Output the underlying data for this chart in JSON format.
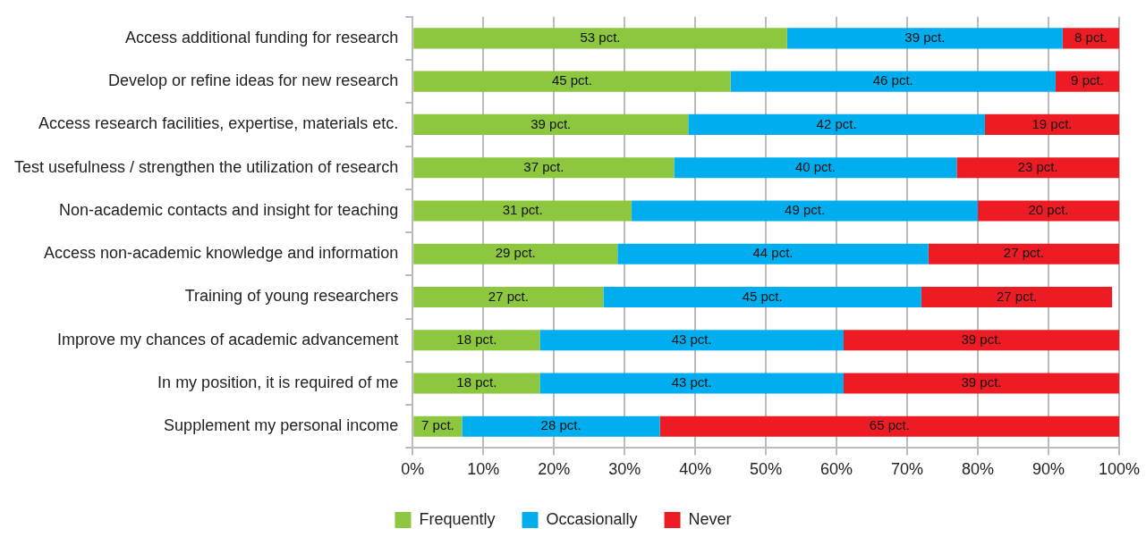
{
  "chart_data": {
    "type": "bar",
    "orientation": "horizontal",
    "stacked": true,
    "categories": [
      "Access additional funding for research",
      "Develop or refine ideas for new research",
      "Access research facilities, expertise, materials etc.",
      "Test usefulness / strengthen the utilization of research",
      "Non-academic contacts and insight for teaching",
      "Access non-academic knowledge and information",
      "Training of young researchers",
      "Improve my chances of academic advancement",
      "In my position, it is required of me",
      "Supplement my personal income"
    ],
    "series": [
      {
        "name": "Frequently",
        "color": "#8dc63f",
        "values": [
          53,
          45,
          39,
          37,
          31,
          29,
          27,
          18,
          18,
          7
        ],
        "value_labels": [
          "53 pct.",
          "45 pct.",
          "39 pct.",
          "37 pct.",
          "31 pct.",
          "29 pct.",
          "27 pct.",
          "18 pct.",
          "18 pct.",
          "7 pct."
        ]
      },
      {
        "name": "Occasionally",
        "color": "#00aeef",
        "values": [
          39,
          46,
          42,
          40,
          49,
          44,
          45,
          43,
          43,
          28
        ],
        "value_labels": [
          "39 pct.",
          "46 pct.",
          "42 pct.",
          "40 pct.",
          "49 pct.",
          "44 pct.",
          "45 pct.",
          "43 pct.",
          "43 pct.",
          "28 pct."
        ]
      },
      {
        "name": "Never",
        "color": "#ed1c24",
        "values": [
          8,
          9,
          19,
          23,
          20,
          27,
          27,
          39,
          39,
          65
        ],
        "value_labels": [
          "8 pct.",
          "9 pct.",
          "19 pct.",
          "23 pct.",
          "20 pct.",
          "27 pct.",
          "27 pct.",
          "39 pct.",
          "39 pct.",
          "65 pct."
        ]
      }
    ],
    "xlim": [
      0,
      100
    ],
    "xticks": [
      {
        "value": 0,
        "label": "0%"
      },
      {
        "value": 10,
        "label": "10%"
      },
      {
        "value": 20,
        "label": "20%"
      },
      {
        "value": 30,
        "label": "30%"
      },
      {
        "value": 40,
        "label": "40%"
      },
      {
        "value": 50,
        "label": "50%"
      },
      {
        "value": 60,
        "label": "60%"
      },
      {
        "value": 70,
        "label": "70%"
      },
      {
        "value": 80,
        "label": "80%"
      },
      {
        "value": 90,
        "label": "90%"
      },
      {
        "value": 100,
        "label": "100%"
      }
    ],
    "grid": "x",
    "legend": "bottom"
  }
}
